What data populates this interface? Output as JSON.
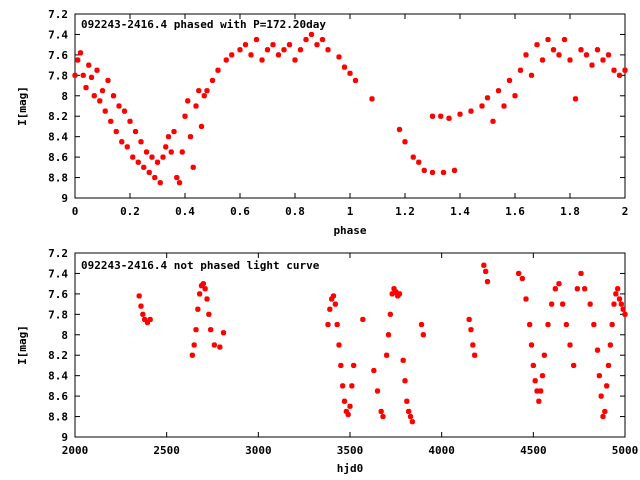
{
  "chart_data": [
    {
      "type": "scatter",
      "title": "092243-2416.4 phased with P=172.20day",
      "xlabel": "phase",
      "ylabel": "I[mag]",
      "xlim": [
        0,
        2
      ],
      "ylim": [
        7.2,
        9
      ],
      "y_inverted": true,
      "xticks": [
        "0",
        "0.2",
        "0.4",
        "0.6",
        "0.8",
        "1",
        "1.2",
        "1.4",
        "1.6",
        "1.8",
        "2"
      ],
      "yticks": [
        "7.2",
        "7.4",
        "7.6",
        "7.8",
        "8",
        "8.2",
        "8.4",
        "8.6",
        "8.8",
        "9"
      ],
      "grid": false,
      "marker_color": "#ff0000",
      "series": [
        {
          "points": [
            [
              0.0,
              7.8
            ],
            [
              0.01,
              7.65
            ],
            [
              0.02,
              7.58
            ],
            [
              0.03,
              7.8
            ],
            [
              0.04,
              7.92
            ],
            [
              0.05,
              7.7
            ],
            [
              0.06,
              7.82
            ],
            [
              0.07,
              8.0
            ],
            [
              0.08,
              7.75
            ],
            [
              0.09,
              8.05
            ],
            [
              0.1,
              7.95
            ],
            [
              0.11,
              8.15
            ],
            [
              0.12,
              7.85
            ],
            [
              0.13,
              8.25
            ],
            [
              0.14,
              8.0
            ],
            [
              0.15,
              8.35
            ],
            [
              0.16,
              8.1
            ],
            [
              0.17,
              8.45
            ],
            [
              0.18,
              8.15
            ],
            [
              0.19,
              8.5
            ],
            [
              0.2,
              8.25
            ],
            [
              0.21,
              8.6
            ],
            [
              0.22,
              8.35
            ],
            [
              0.23,
              8.65
            ],
            [
              0.24,
              8.45
            ],
            [
              0.25,
              8.7
            ],
            [
              0.26,
              8.55
            ],
            [
              0.27,
              8.75
            ],
            [
              0.28,
              8.6
            ],
            [
              0.29,
              8.8
            ],
            [
              0.3,
              8.65
            ],
            [
              0.31,
              8.85
            ],
            [
              0.32,
              8.6
            ],
            [
              0.33,
              8.5
            ],
            [
              0.34,
              8.4
            ],
            [
              0.35,
              8.55
            ],
            [
              0.36,
              8.35
            ],
            [
              0.37,
              8.8
            ],
            [
              0.38,
              8.85
            ],
            [
              0.39,
              8.55
            ],
            [
              0.4,
              8.2
            ],
            [
              0.41,
              8.05
            ],
            [
              0.42,
              8.4
            ],
            [
              0.43,
              8.7
            ],
            [
              0.44,
              8.1
            ],
            [
              0.45,
              7.95
            ],
            [
              0.46,
              8.3
            ],
            [
              0.47,
              8.0
            ],
            [
              0.48,
              7.95
            ],
            [
              0.5,
              7.85
            ],
            [
              0.52,
              7.75
            ],
            [
              0.55,
              7.65
            ],
            [
              0.57,
              7.6
            ],
            [
              0.6,
              7.55
            ],
            [
              0.62,
              7.5
            ],
            [
              0.64,
              7.6
            ],
            [
              0.66,
              7.45
            ],
            [
              0.68,
              7.65
            ],
            [
              0.7,
              7.55
            ],
            [
              0.72,
              7.5
            ],
            [
              0.74,
              7.6
            ],
            [
              0.76,
              7.55
            ],
            [
              0.78,
              7.5
            ],
            [
              0.8,
              7.65
            ],
            [
              0.82,
              7.55
            ],
            [
              0.84,
              7.45
            ],
            [
              0.86,
              7.4
            ],
            [
              0.88,
              7.5
            ],
            [
              0.9,
              7.45
            ],
            [
              0.92,
              7.55
            ],
            [
              0.96,
              7.62
            ],
            [
              0.98,
              7.72
            ],
            [
              1.0,
              7.78
            ],
            [
              1.02,
              7.85
            ],
            [
              1.08,
              8.03
            ],
            [
              1.18,
              8.33
            ],
            [
              1.2,
              8.45
            ],
            [
              1.23,
              8.6
            ],
            [
              1.25,
              8.65
            ],
            [
              1.27,
              8.73
            ],
            [
              1.3,
              8.75
            ],
            [
              1.34,
              8.75
            ],
            [
              1.38,
              8.73
            ],
            [
              1.3,
              8.2
            ],
            [
              1.33,
              8.2
            ],
            [
              1.36,
              8.22
            ],
            [
              1.4,
              8.18
            ],
            [
              1.44,
              8.15
            ],
            [
              1.48,
              8.1
            ],
            [
              1.5,
              8.02
            ],
            [
              1.52,
              8.25
            ],
            [
              1.54,
              7.95
            ],
            [
              1.56,
              8.1
            ],
            [
              1.58,
              7.85
            ],
            [
              1.6,
              8.0
            ],
            [
              1.62,
              7.75
            ],
            [
              1.64,
              7.6
            ],
            [
              1.66,
              7.8
            ],
            [
              1.68,
              7.5
            ],
            [
              1.7,
              7.65
            ],
            [
              1.72,
              7.45
            ],
            [
              1.74,
              7.55
            ],
            [
              1.76,
              7.6
            ],
            [
              1.78,
              7.45
            ],
            [
              1.8,
              7.65
            ],
            [
              1.82,
              8.03
            ],
            [
              1.84,
              7.55
            ],
            [
              1.86,
              7.6
            ],
            [
              1.88,
              7.7
            ],
            [
              1.9,
              7.55
            ],
            [
              1.92,
              7.65
            ],
            [
              1.94,
              7.6
            ],
            [
              1.96,
              7.75
            ],
            [
              1.98,
              7.8
            ],
            [
              2.0,
              7.75
            ]
          ]
        }
      ]
    },
    {
      "type": "scatter",
      "title": "092243-2416.4 not phased light curve",
      "xlabel": "hjd0",
      "ylabel": "I[mag]",
      "xlim": [
        2000,
        5000
      ],
      "ylim": [
        7.2,
        9
      ],
      "y_inverted": true,
      "xticks": [
        "2000",
        "2500",
        "3000",
        "3500",
        "4000",
        "4500",
        "5000"
      ],
      "yticks": [
        "7.2",
        "7.4",
        "7.6",
        "7.8",
        "8",
        "8.2",
        "8.4",
        "8.6",
        "8.8",
        "9"
      ],
      "grid": false,
      "marker_color": "#ff0000",
      "series": [
        {
          "points": [
            [
              2350,
              7.62
            ],
            [
              2360,
              7.72
            ],
            [
              2370,
              7.8
            ],
            [
              2380,
              7.85
            ],
            [
              2395,
              7.88
            ],
            [
              2410,
              7.85
            ],
            [
              2640,
              8.2
            ],
            [
              2650,
              8.1
            ],
            [
              2660,
              7.95
            ],
            [
              2670,
              7.75
            ],
            [
              2680,
              7.6
            ],
            [
              2690,
              7.52
            ],
            [
              2700,
              7.5
            ],
            [
              2710,
              7.55
            ],
            [
              2720,
              7.65
            ],
            [
              2730,
              7.8
            ],
            [
              2740,
              7.95
            ],
            [
              2760,
              8.1
            ],
            [
              2790,
              8.12
            ],
            [
              2810,
              7.98
            ],
            [
              3380,
              7.9
            ],
            [
              3390,
              7.75
            ],
            [
              3400,
              7.65
            ],
            [
              3410,
              7.62
            ],
            [
              3420,
              7.7
            ],
            [
              3430,
              7.9
            ],
            [
              3440,
              8.1
            ],
            [
              3450,
              8.3
            ],
            [
              3460,
              8.5
            ],
            [
              3470,
              8.65
            ],
            [
              3480,
              8.75
            ],
            [
              3490,
              8.78
            ],
            [
              3500,
              8.7
            ],
            [
              3510,
              8.5
            ],
            [
              3520,
              8.3
            ],
            [
              3570,
              7.85
            ],
            [
              3630,
              8.35
            ],
            [
              3650,
              8.55
            ],
            [
              3670,
              8.75
            ],
            [
              3680,
              8.8
            ],
            [
              3700,
              8.2
            ],
            [
              3710,
              8.0
            ],
            [
              3720,
              7.8
            ],
            [
              3730,
              7.6
            ],
            [
              3740,
              7.55
            ],
            [
              3750,
              7.58
            ],
            [
              3760,
              7.62
            ],
            [
              3770,
              7.6
            ],
            [
              3790,
              8.25
            ],
            [
              3800,
              8.45
            ],
            [
              3810,
              8.65
            ],
            [
              3820,
              8.75
            ],
            [
              3830,
              8.8
            ],
            [
              3840,
              8.85
            ],
            [
              3890,
              7.9
            ],
            [
              3900,
              8.0
            ],
            [
              4150,
              7.85
            ],
            [
              4160,
              7.95
            ],
            [
              4170,
              8.1
            ],
            [
              4180,
              8.2
            ],
            [
              4230,
              7.32
            ],
            [
              4240,
              7.38
            ],
            [
              4250,
              7.48
            ],
            [
              4420,
              7.4
            ],
            [
              4440,
              7.45
            ],
            [
              4460,
              7.65
            ],
            [
              4480,
              7.9
            ],
            [
              4490,
              8.1
            ],
            [
              4500,
              8.3
            ],
            [
              4510,
              8.45
            ],
            [
              4520,
              8.55
            ],
            [
              4530,
              8.65
            ],
            [
              4540,
              8.55
            ],
            [
              4550,
              8.4
            ],
            [
              4560,
              8.2
            ],
            [
              4580,
              7.9
            ],
            [
              4600,
              7.7
            ],
            [
              4620,
              7.55
            ],
            [
              4640,
              7.5
            ],
            [
              4660,
              7.7
            ],
            [
              4680,
              7.9
            ],
            [
              4700,
              8.1
            ],
            [
              4720,
              8.3
            ],
            [
              4740,
              7.55
            ],
            [
              4760,
              7.4
            ],
            [
              4780,
              7.55
            ],
            [
              4810,
              7.7
            ],
            [
              4830,
              7.9
            ],
            [
              4850,
              8.15
            ],
            [
              4860,
              8.4
            ],
            [
              4870,
              8.6
            ],
            [
              4880,
              8.8
            ],
            [
              4890,
              8.75
            ],
            [
              4900,
              8.5
            ],
            [
              4910,
              8.3
            ],
            [
              4920,
              8.1
            ],
            [
              4930,
              7.9
            ],
            [
              4940,
              7.7
            ],
            [
              4950,
              7.6
            ],
            [
              4960,
              7.55
            ],
            [
              4970,
              7.65
            ],
            [
              4980,
              7.7
            ],
            [
              4990,
              7.75
            ],
            [
              5000,
              7.8
            ]
          ]
        }
      ]
    }
  ]
}
